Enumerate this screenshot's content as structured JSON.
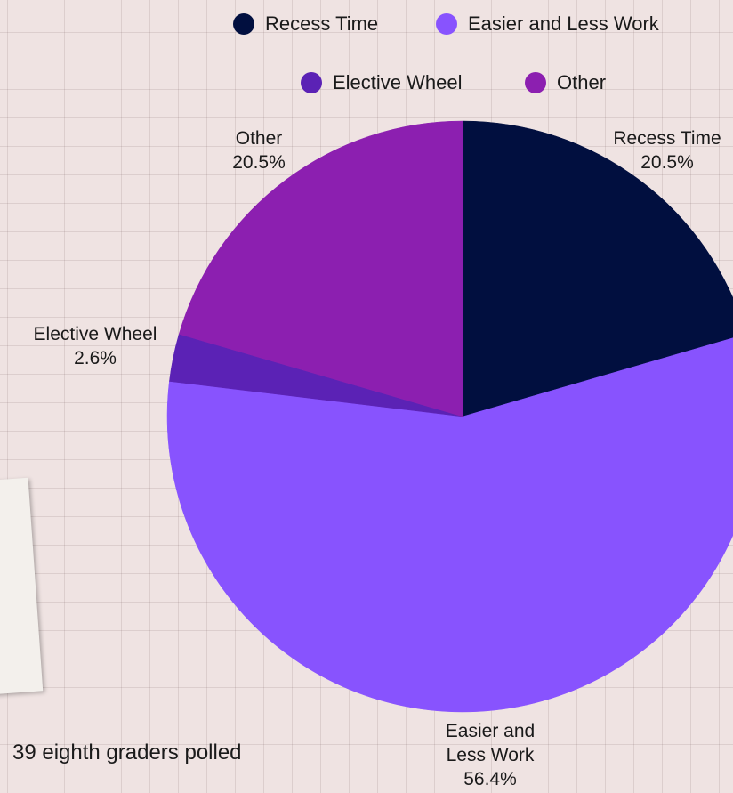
{
  "chart_data": {
    "type": "pie",
    "title": "",
    "legend_position": "top",
    "slices": [
      {
        "label": "Recess Time",
        "label_lines": [
          "Recess Time"
        ],
        "value": 20.5,
        "value_label": "20.5%",
        "color": "#010f3f"
      },
      {
        "label": "Easier and Less Work",
        "label_lines": [
          "Easier and",
          "Less Work"
        ],
        "value": 56.4,
        "value_label": "56.4%",
        "color": "#8853fe"
      },
      {
        "label": "Elective Wheel",
        "label_lines": [
          "Elective Wheel"
        ],
        "value": 2.6,
        "value_label": "2.6%",
        "color": "#5b22b5"
      },
      {
        "label": "Other",
        "label_lines": [
          "Other"
        ],
        "value": 20.5,
        "value_label": "20.5%",
        "color": "#8c1fb0"
      }
    ]
  },
  "legend": [
    {
      "label": "Recess Time",
      "color": "#010f3f"
    },
    {
      "label": "Easier and Less Work",
      "color": "#8853fe"
    },
    {
      "label": "Elective Wheel",
      "color": "#5b22b5"
    },
    {
      "label": "Other",
      "color": "#8c1fb0"
    }
  ],
  "footnote": "39 eighth graders polled"
}
